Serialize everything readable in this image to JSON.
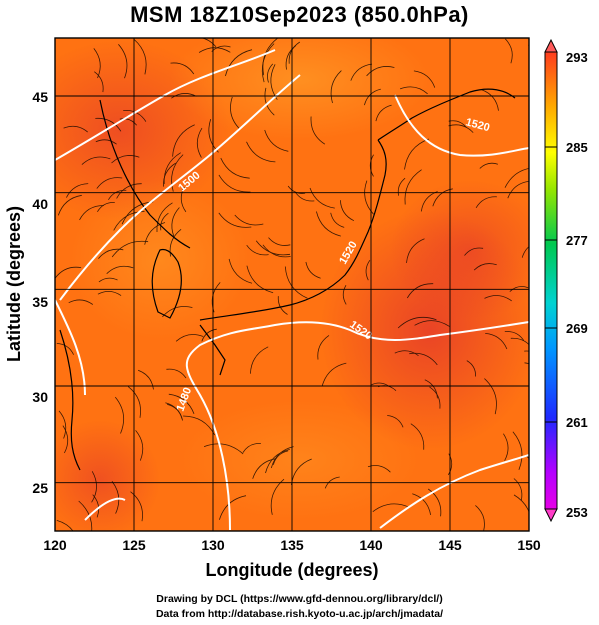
{
  "title": "MSM 18Z10Sep2023 (850.0hPa)",
  "credits": {
    "line1": "Drawing by DCL (https://www.gfd-dennou.org/library/dcl/)",
    "line2": "Data from http://database.rish.kyoto-u.ac.jp/arch/jmadata/"
  },
  "map": {
    "xlabel": "Longitude (degrees)",
    "ylabel": "Latitude  (degrees)",
    "x_ticks": [
      "120",
      "125",
      "130",
      "135",
      "140",
      "145",
      "150"
    ],
    "y_ticks": [
      "25",
      "30",
      "35",
      "40",
      "45"
    ],
    "contour_labels": [
      "1480",
      "1500",
      "1520",
      "1520",
      "1520"
    ]
  },
  "colorbar": {
    "ticks": [
      "293",
      "285",
      "277",
      "269",
      "261",
      "253"
    ]
  },
  "colors": {
    "warm": "#ff6a00",
    "hot": "#e83a12",
    "mild": "#ff9a1a",
    "contour": "#ffffff"
  }
}
